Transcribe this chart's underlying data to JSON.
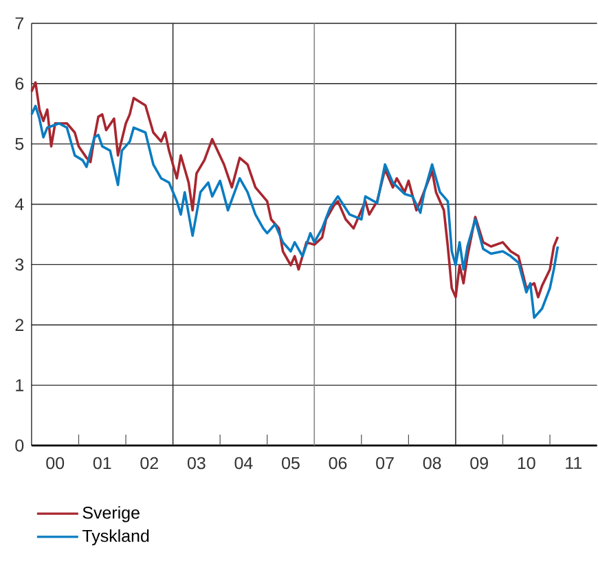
{
  "chart_data": {
    "type": "line",
    "xlim": [
      "2000",
      "2012"
    ],
    "ylim": [
      0,
      7
    ],
    "yticks": [
      0,
      1,
      2,
      3,
      4,
      5,
      6,
      7
    ],
    "grid": "y",
    "legend": "bottom left",
    "line_style": "solid",
    "xticks": [
      {
        "value": "2000-07",
        "label": "00"
      },
      {
        "value": "2001-07",
        "label": "01"
      },
      {
        "value": "2002-07",
        "label": "02"
      },
      {
        "value": "2003-07",
        "label": "03"
      },
      {
        "value": "2004-07",
        "label": "04"
      },
      {
        "value": "2005-07",
        "label": "05"
      },
      {
        "value": "2006-07",
        "label": "06"
      },
      {
        "value": "2007-07",
        "label": "07"
      },
      {
        "value": "2008-07",
        "label": "08"
      },
      {
        "value": "2009-07",
        "label": "09"
      },
      {
        "value": "2010-07",
        "label": "10"
      },
      {
        "value": "2011-07",
        "label": "11"
      },
      {
        "value": "2001",
        "label": null
      },
      {
        "value": "2002",
        "label": null
      },
      {
        "value": "2004",
        "label": null
      },
      {
        "value": "2005",
        "label": null
      },
      {
        "value": "2007",
        "label": null
      },
      {
        "value": "2008",
        "label": null
      },
      {
        "value": "2010",
        "label": null
      },
      {
        "value": "2011",
        "label": null
      }
    ],
    "ref_lines": [
      {
        "axis": "x",
        "value": "2003",
        "color": "#333333"
      },
      {
        "axis": "x",
        "value": "2006",
        "color": "#888888"
      },
      {
        "axis": "x",
        "value": "2009",
        "color": "#333333"
      }
    ],
    "series": [
      {
        "name": "Sverige",
        "color": "#a8262f",
        "x": [
          "2000-01",
          "2000-02",
          "2000-03",
          "2000-04",
          "2000-05",
          "2000-06",
          "2000-07",
          "2000-10",
          "2000-12",
          "2001-01",
          "2001-03",
          "2001-04",
          "2001-05",
          "2001-06",
          "2001-07",
          "2001-08",
          "2001-10",
          "2001-11",
          "2002-01",
          "2002-02",
          "2002-03",
          "2002-06",
          "2002-08",
          "2002-10",
          "2002-11",
          "2002-12",
          "2003-02",
          "2003-03",
          "2003-05",
          "2003-06",
          "2003-07",
          "2003-09",
          "2003-11",
          "2004-02",
          "2004-04",
          "2004-06",
          "2004-08",
          "2004-10",
          "2005-01",
          "2005-02",
          "2005-04",
          "2005-05",
          "2005-07",
          "2005-08",
          "2005-09",
          "2005-11",
          "2006-01",
          "2006-03",
          "2006-04",
          "2006-06",
          "2006-07",
          "2006-09",
          "2006-11",
          "2007-02",
          "2007-03",
          "2007-05",
          "2007-07",
          "2007-09",
          "2007-10",
          "2007-12",
          "2008-01",
          "2008-03",
          "2008-04",
          "2008-07",
          "2008-08",
          "2008-10",
          "2008-11",
          "2008-12",
          "2009-01",
          "2009-02",
          "2009-03",
          "2009-04",
          "2009-06",
          "2009-08",
          "2009-10",
          "2010-01",
          "2010-03",
          "2010-05",
          "2010-07",
          "2010-09",
          "2010-10",
          "2010-11",
          "2011-01",
          "2011-02",
          "2011-03"
        ],
        "values": [
          5.87,
          6.02,
          5.57,
          5.38,
          5.57,
          4.96,
          5.34,
          5.34,
          5.19,
          4.96,
          4.77,
          4.7,
          5.11,
          5.45,
          5.49,
          5.23,
          5.42,
          4.81,
          5.34,
          5.49,
          5.76,
          5.64,
          5.19,
          5.04,
          5.19,
          4.89,
          4.43,
          4.81,
          4.36,
          3.9,
          4.51,
          4.73,
          5.08,
          4.66,
          4.28,
          4.77,
          4.66,
          4.28,
          4.05,
          3.75,
          3.6,
          3.22,
          2.99,
          3.14,
          2.92,
          3.37,
          3.33,
          3.45,
          3.75,
          3.98,
          4.05,
          3.75,
          3.6,
          4.05,
          3.83,
          4.05,
          4.58,
          4.28,
          4.43,
          4.2,
          4.39,
          3.9,
          4.05,
          4.55,
          4.2,
          3.9,
          3.3,
          2.61,
          2.46,
          2.99,
          2.69,
          3.14,
          3.79,
          3.37,
          3.3,
          3.37,
          3.22,
          3.14,
          2.61,
          2.69,
          2.46,
          2.65,
          2.92,
          3.3,
          3.46
        ]
      },
      {
        "name": "Tyskland",
        "color": "#0a7cc1",
        "x": [
          "2000-01",
          "2000-02",
          "2000-03",
          "2000-04",
          "2000-05",
          "2000-08",
          "2000-10",
          "2000-12",
          "2001-02",
          "2001-03",
          "2001-05",
          "2001-06",
          "2001-07",
          "2001-09",
          "2001-11",
          "2001-12",
          "2002-02",
          "2002-03",
          "2002-06",
          "2002-08",
          "2002-10",
          "2002-12",
          "2003-02",
          "2003-03",
          "2003-04",
          "2003-06",
          "2003-08",
          "2003-10",
          "2003-11",
          "2004-01",
          "2004-03",
          "2004-06",
          "2004-08",
          "2004-10",
          "2004-12",
          "2005-01",
          "2005-03",
          "2005-05",
          "2005-07",
          "2005-08",
          "2005-10",
          "2005-12",
          "2006-01",
          "2006-03",
          "2006-05",
          "2006-07",
          "2006-10",
          "2007-01",
          "2007-02",
          "2007-05",
          "2007-07",
          "2007-09",
          "2007-12",
          "2008-02",
          "2008-04",
          "2008-05",
          "2008-07",
          "2008-09",
          "2008-11",
          "2008-12",
          "2009-01",
          "2009-02",
          "2009-03",
          "2009-04",
          "2009-06",
          "2009-08",
          "2009-10",
          "2010-01",
          "2010-03",
          "2010-05",
          "2010-07",
          "2010-08",
          "2010-09",
          "2010-11",
          "2011-01",
          "2011-02",
          "2011-03"
        ],
        "values": [
          5.49,
          5.63,
          5.42,
          5.11,
          5.27,
          5.34,
          5.27,
          4.81,
          4.73,
          4.62,
          5.11,
          5.15,
          4.96,
          4.89,
          4.32,
          4.89,
          5.04,
          5.27,
          5.19,
          4.66,
          4.43,
          4.36,
          4.05,
          3.83,
          4.2,
          3.48,
          4.2,
          4.36,
          4.13,
          4.39,
          3.9,
          4.43,
          4.2,
          3.83,
          3.6,
          3.52,
          3.67,
          3.37,
          3.22,
          3.37,
          3.14,
          3.52,
          3.37,
          3.6,
          3.94,
          4.13,
          3.83,
          3.75,
          4.13,
          4.02,
          4.66,
          4.36,
          4.17,
          4.13,
          3.86,
          4.2,
          4.66,
          4.2,
          4.05,
          3.22,
          2.99,
          3.37,
          2.92,
          3.3,
          3.75,
          3.26,
          3.18,
          3.22,
          3.14,
          3.03,
          2.54,
          2.69,
          2.12,
          2.27,
          2.61,
          2.92,
          3.3
        ]
      }
    ]
  }
}
